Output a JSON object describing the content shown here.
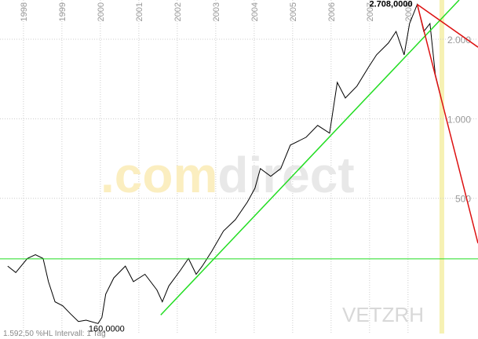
{
  "chart_data": {
    "type": "line",
    "log_y": true,
    "grid": true,
    "xlim": [
      1997.39,
      2009.82
    ],
    "xticks": [
      1998,
      1999,
      2000,
      2001,
      2002,
      2003,
      2004,
      2005,
      2006,
      2007,
      2008
    ],
    "ylim": [
      154,
      2814
    ],
    "yticks": [
      {
        "value": 500,
        "label": "500"
      },
      {
        "value": 1000,
        "label": "1.000"
      },
      {
        "value": 2000,
        "label": "2.000"
      }
    ],
    "series": [
      {
        "color": "#000000",
        "x": [
          1997.59,
          1997.8,
          1998.1,
          1998.31,
          1998.51,
          1998.65,
          1998.82,
          1999.02,
          1999.22,
          1999.43,
          1999.63,
          1999.94,
          2000.04,
          2000.14,
          2000.35,
          2000.65,
          2000.86,
          2001.16,
          2001.47,
          2001.61,
          2001.78,
          2002.08,
          2002.29,
          2002.49,
          2002.65,
          2002.9,
          2003.2,
          2003.51,
          2003.82,
          2004.02,
          2004.16,
          2004.43,
          2004.69,
          2004.94,
          2005.35,
          2005.65,
          2005.96,
          2006.16,
          2006.37,
          2006.67,
          2006.98,
          2007.18,
          2007.49,
          2007.69,
          2007.9,
          2008.04,
          2008.24,
          2008.41,
          2008.57,
          2008.71,
          2008.86
        ],
        "values": [
          277,
          262,
          296,
          306,
          296,
          242,
          203,
          196,
          183,
          171,
          173,
          168,
          177,
          217,
          250,
          277,
          242,
          258,
          225,
          203,
          233,
          267,
          296,
          258,
          277,
          316,
          376,
          415,
          483,
          546,
          648,
          606,
          648,
          795,
          851,
          944,
          882,
          1373,
          1198,
          1328,
          1574,
          1745,
          1933,
          2139,
          1745,
          2292,
          2708,
          2139,
          2292,
          1472,
          1198
        ]
      }
    ],
    "trendlines": [
      {
        "color": "#22dd22",
        "x": [
          2001.57,
          2009.33
        ],
        "values": [
          181,
          2814
        ]
      },
      {
        "color": "#dd1111",
        "x": [
          2008.24,
          2009.82
        ],
        "values": [
          2708,
          1866
        ]
      },
      {
        "color": "#dd1111",
        "x": [
          2008.24,
          2009.82
        ],
        "values": [
          2708,
          338
        ]
      }
    ],
    "hlines": [
      {
        "color": "#22dd22",
        "value": 295
      }
    ],
    "highlight_x": 2008.88,
    "annotations": {
      "max": "2.708,0000",
      "min": "160,0000"
    },
    "footer": "1.592,50 %HL Intervall: 1 Tag",
    "symbol": "VETZRH",
    "watermark": [
      ".com",
      "direct"
    ]
  }
}
